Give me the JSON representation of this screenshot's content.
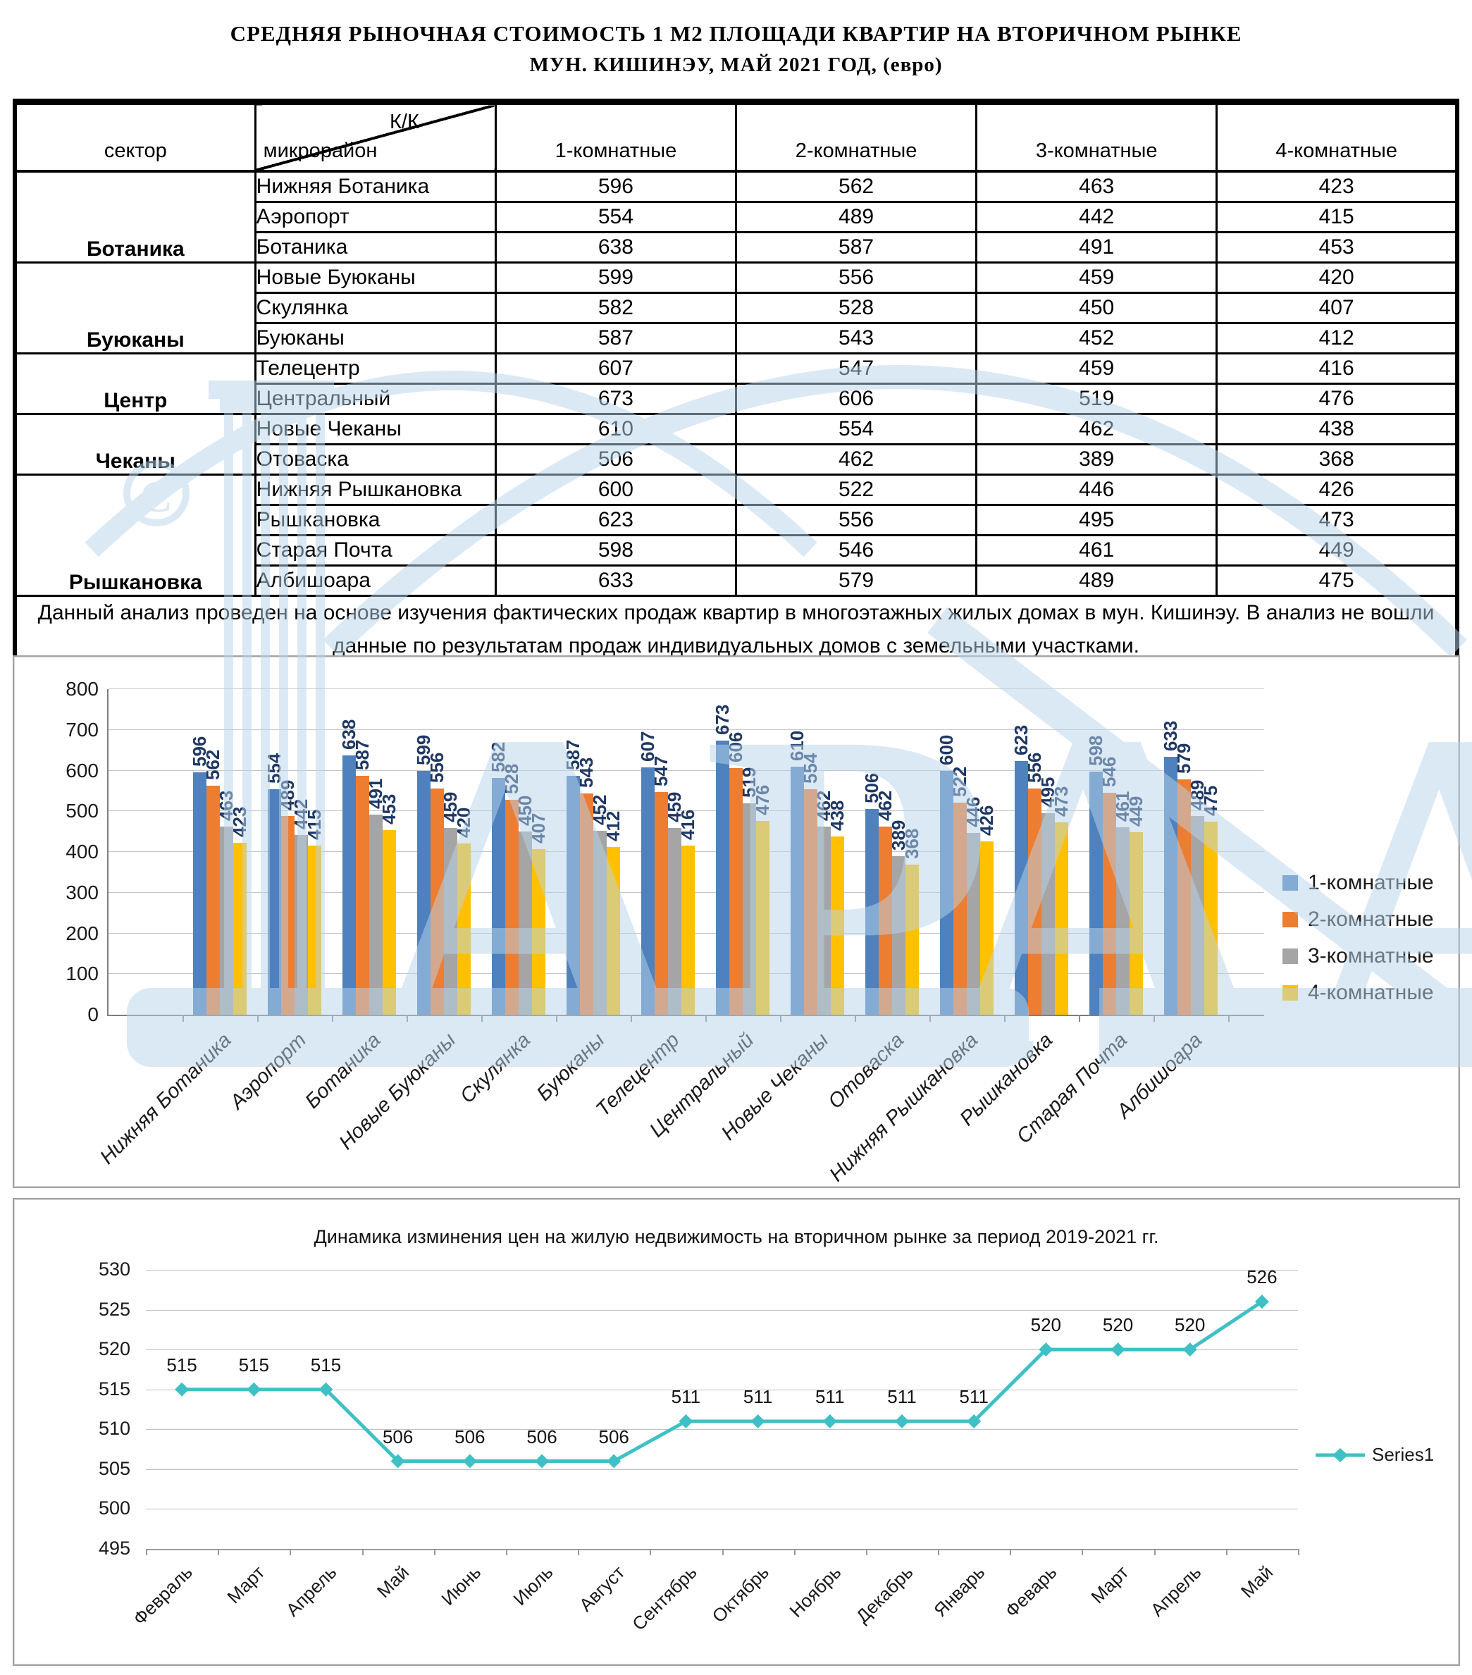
{
  "doc": {
    "title_line1": "СРЕДНЯЯ  РЫНОЧНАЯ  СТОИМОСТЬ  1 М2  ПЛОЩАДИ  КВАРТИР НА ВТОРИЧНОМ РЫНКЕ",
    "title_line2": "МУН.  КИШИНЭУ, МАЙ 2021 ГОД, (евро)"
  },
  "table": {
    "sector_header": "сектор",
    "corner_top": "К/К",
    "corner_bottom": "микрорайон",
    "columns": [
      "1-комнатные",
      "2-комнатные",
      "3-комнатные",
      "4-комнатные"
    ],
    "sectors": [
      {
        "name": "Ботаника",
        "rows": [
          [
            "Нижняя Ботаника",
            596,
            562,
            463,
            423
          ],
          [
            "Аэропорт",
            554,
            489,
            442,
            415
          ],
          [
            "Ботаника",
            638,
            587,
            491,
            453
          ]
        ]
      },
      {
        "name": "Буюканы",
        "rows": [
          [
            "Новые Буюканы",
            599,
            556,
            459,
            420
          ],
          [
            "Скулянка",
            582,
            528,
            450,
            407
          ],
          [
            "Буюканы",
            587,
            543,
            452,
            412
          ]
        ]
      },
      {
        "name": "Центр",
        "rows": [
          [
            "Телецентр",
            607,
            547,
            459,
            416
          ],
          [
            "Центральный",
            673,
            606,
            519,
            476
          ]
        ]
      },
      {
        "name": "Чеканы",
        "rows": [
          [
            "Новые Чеканы",
            610,
            554,
            462,
            438
          ],
          [
            "Отоваска",
            506,
            462,
            389,
            368
          ]
        ]
      },
      {
        "name": "Рышкановка",
        "rows": [
          [
            "Нижняя Рышкановка",
            600,
            522,
            446,
            426
          ],
          [
            "Рышкановка",
            623,
            556,
            495,
            473
          ],
          [
            "Старая Почта",
            598,
            546,
            461,
            449
          ],
          [
            "Албишоара",
            633,
            579,
            489,
            475
          ]
        ]
      }
    ],
    "note": "Данный анализ проведен на основе изучения фактических продаж квартир в многоэтажных жилых домах в мун. Кишинэу. В анализ не вошли данные по результатам  продаж индивидуальных домов с земельными участками."
  },
  "chart_data": [
    {
      "type": "bar",
      "title": "",
      "categories": [
        "Нижняя Ботаника",
        "Аэропорт",
        "Ботаника",
        "Новые Буюканы",
        "Скулянка",
        "Буюканы",
        "Телецентр",
        "Центральный",
        "Новые Чеканы",
        "Отоваска",
        "Нижняя Рышкановка",
        "Рышкановка",
        "Старая Почта",
        "Албишоара"
      ],
      "series": [
        {
          "name": "1-комнатные",
          "color": "#4E81BD",
          "values": [
            596,
            554,
            638,
            599,
            582,
            587,
            607,
            673,
            610,
            506,
            600,
            623,
            598,
            633
          ]
        },
        {
          "name": "2-комнатные",
          "color": "#ED7D31",
          "values": [
            562,
            489,
            587,
            556,
            528,
            543,
            547,
            606,
            554,
            462,
            522,
            556,
            546,
            579
          ]
        },
        {
          "name": "3-комнатные",
          "color": "#A5A5A5",
          "values": [
            463,
            442,
            491,
            459,
            450,
            452,
            459,
            519,
            462,
            389,
            446,
            495,
            461,
            489
          ]
        },
        {
          "name": "4-комнатные",
          "color": "#FFC000",
          "values": [
            423,
            415,
            453,
            420,
            407,
            412,
            416,
            476,
            438,
            368,
            426,
            473,
            449,
            475
          ]
        }
      ],
      "ylim": [
        0,
        800
      ],
      "ytick_step": 100,
      "grid": true,
      "legend_position": "right",
      "value_label_color": "#1F3864",
      "value_labels_rotated": true
    },
    {
      "type": "line",
      "title": "Динамика изминения цен на жилую недвижимость на вторичном рынке за период 2019-2021 гг.",
      "categories": [
        "Февраль",
        "Март",
        "Апрель",
        "Май",
        "Июнь",
        "Июль",
        "Август",
        "Сентябрь",
        "Октябрь",
        "Ноябрь",
        "Декабрь",
        "Январь",
        "Феварь",
        "Март",
        "Апрель",
        "Май"
      ],
      "series": [
        {
          "name": "Series1",
          "color": "#3EC0C5",
          "values": [
            515,
            515,
            515,
            506,
            506,
            506,
            506,
            511,
            511,
            511,
            511,
            511,
            520,
            520,
            520,
            526
          ]
        }
      ],
      "ylim": [
        495,
        530
      ],
      "ytick_step": 5,
      "grid": true,
      "legend_position": "right",
      "marker": "diamond"
    }
  ],
  "watermark": {
    "text": "АРА",
    "color": "#B9D5EC"
  }
}
